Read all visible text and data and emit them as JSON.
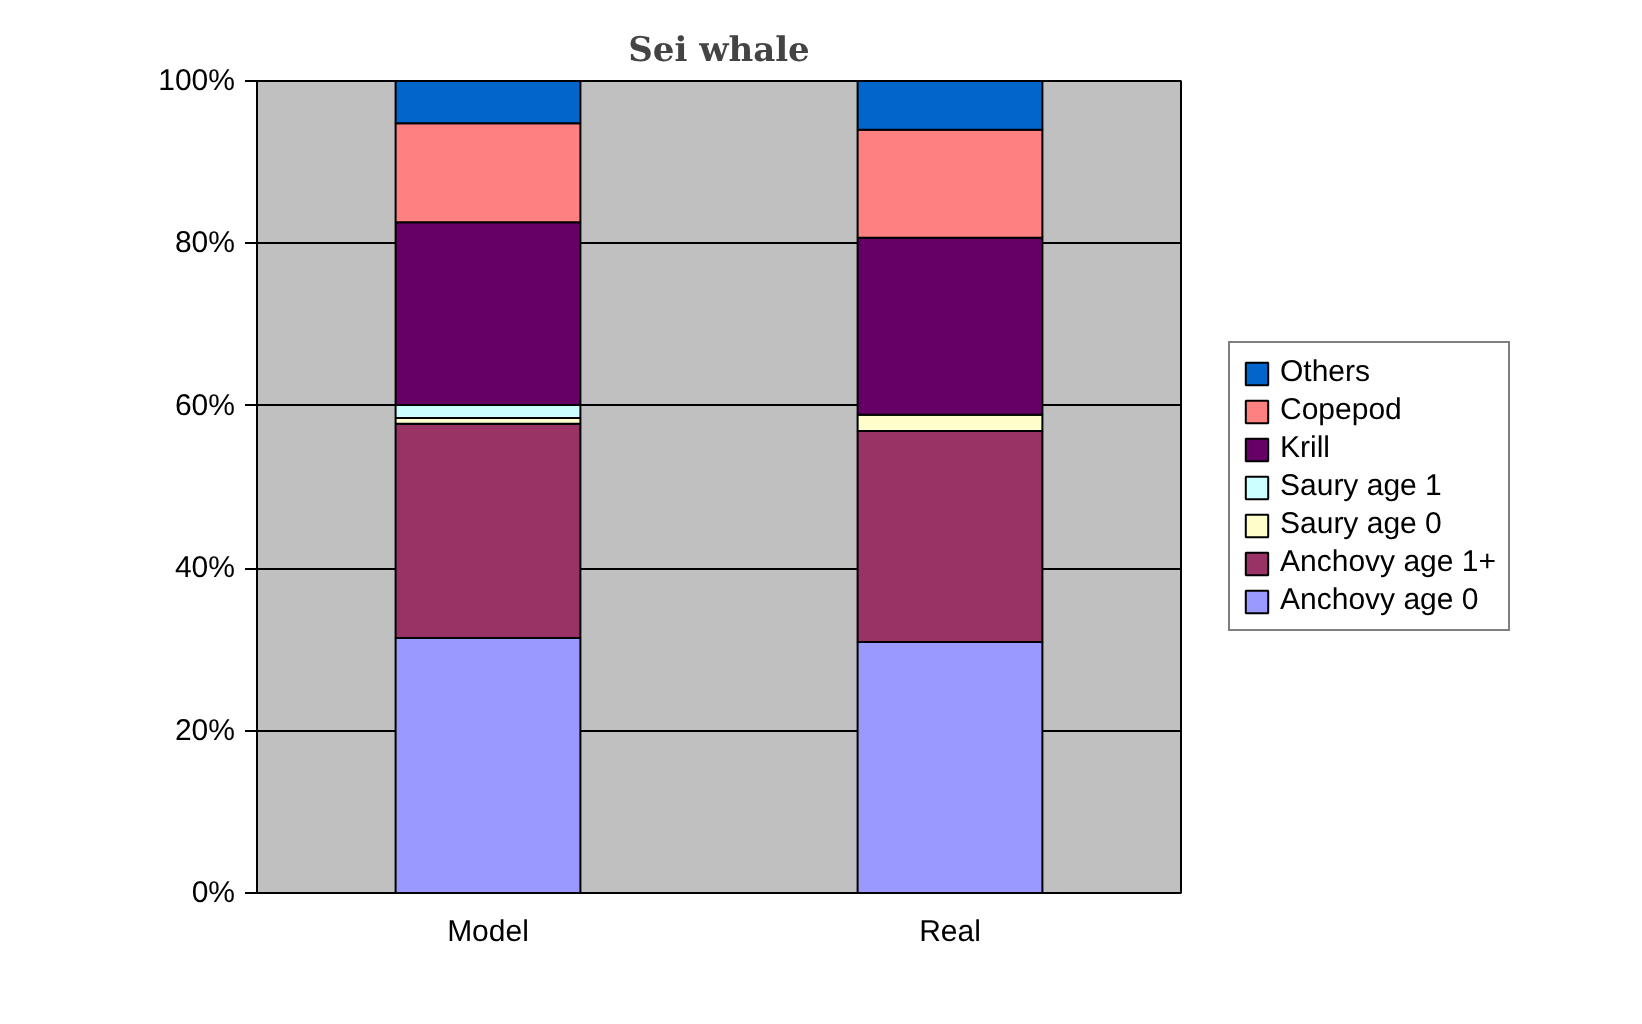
{
  "chart_data": {
    "type": "bar",
    "title": "Sei whale",
    "stacked": true,
    "categories": [
      "Model",
      "Real"
    ],
    "series": [
      {
        "name": "Anchovy age 0",
        "color": "#9999ff",
        "values": [
          31.4,
          30.9
        ]
      },
      {
        "name": "Anchovy age 1+",
        "color": "#993366",
        "values": [
          26.4,
          26.0
        ]
      },
      {
        "name": "Saury age 0",
        "color": "#ffffcc",
        "values": [
          0.7,
          2.0
        ]
      },
      {
        "name": "Saury age 1",
        "color": "#ccffff",
        "values": [
          1.6,
          0
        ]
      },
      {
        "name": "Krill",
        "color": "#660066",
        "values": [
          22.5,
          21.8
        ]
      },
      {
        "name": "Copepod",
        "color": "#ff8080",
        "values": [
          12.2,
          13.3
        ]
      },
      {
        "name": "Others",
        "color": "#0066cc",
        "values": [
          5.2,
          6.0
        ]
      }
    ],
    "ylim": [
      0,
      100
    ],
    "yticks": [
      {
        "value": 0,
        "label": "0%"
      },
      {
        "value": 20,
        "label": "20%"
      },
      {
        "value": 40,
        "label": "40%"
      },
      {
        "value": 60,
        "label": "60%"
      },
      {
        "value": 80,
        "label": "80%"
      },
      {
        "value": 100,
        "label": "100%"
      }
    ],
    "grid": "y",
    "legend": "right"
  }
}
